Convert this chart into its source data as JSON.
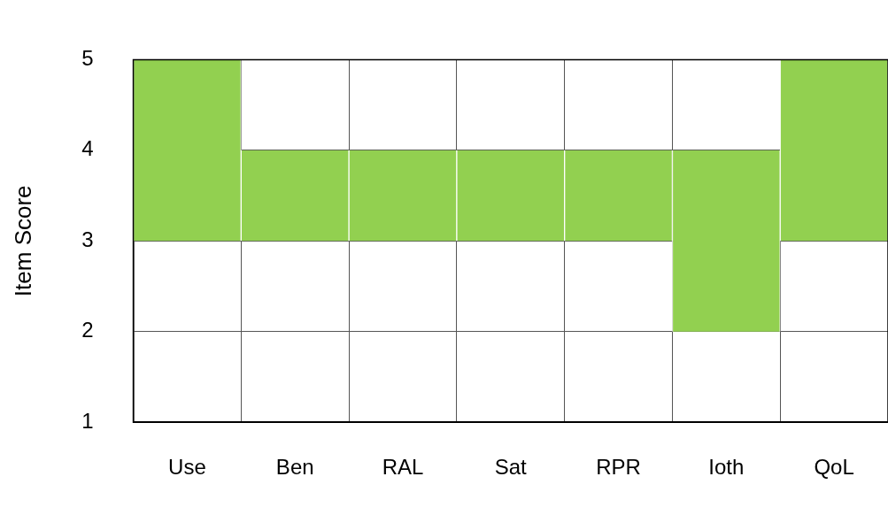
{
  "chart_data": {
    "type": "bar",
    "ylabel": "Item Score",
    "categories": [
      "Use",
      "Ben",
      "RAL",
      "Sat",
      "RPR",
      "Ioth",
      "QoL"
    ],
    "base": [
      3,
      3,
      3,
      3,
      3,
      2,
      3
    ],
    "values": [
      2,
      1,
      1,
      1,
      1,
      2,
      2
    ],
    "color": "#92d050",
    "ylim": [
      1,
      5
    ],
    "yticks": [
      1,
      2,
      3,
      4,
      5
    ],
    "grid": true,
    "legend": false
  }
}
